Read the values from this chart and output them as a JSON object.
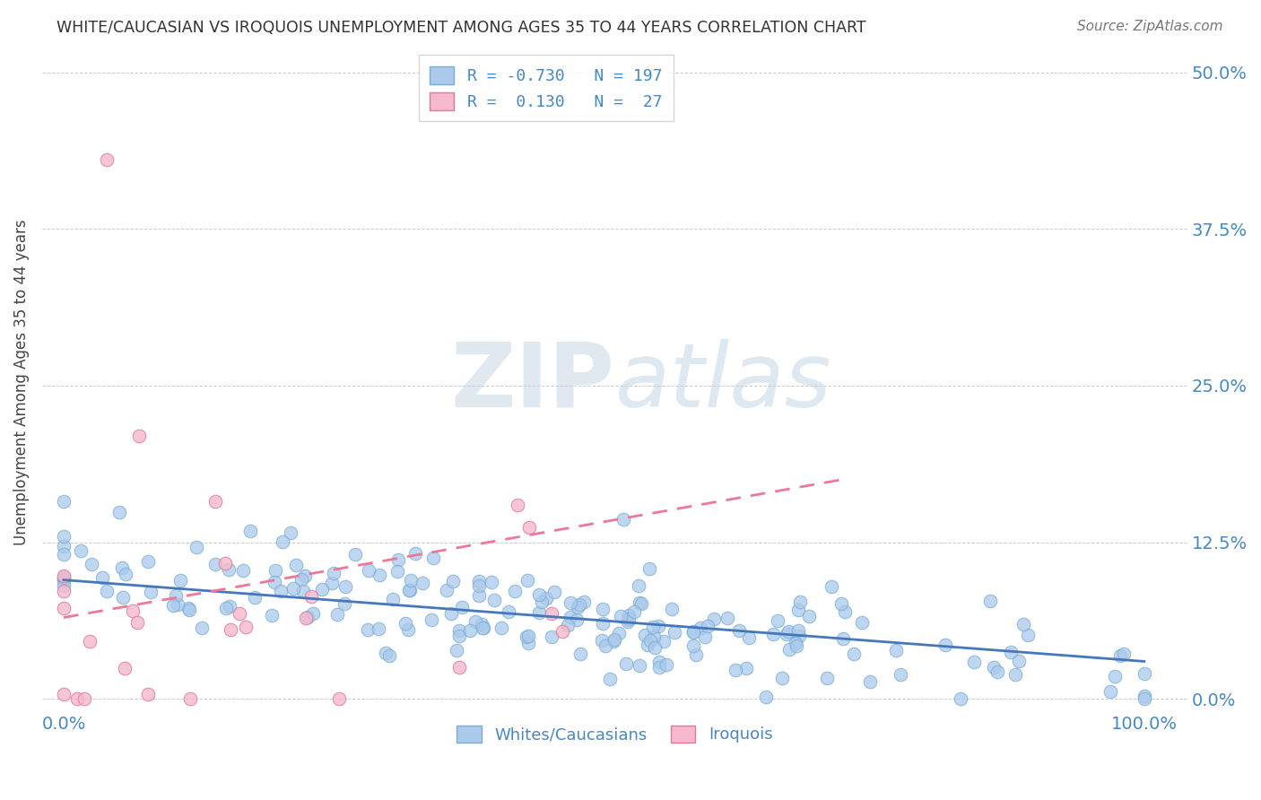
{
  "title": "WHITE/CAUCASIAN VS IROQUOIS UNEMPLOYMENT AMONG AGES 35 TO 44 YEARS CORRELATION CHART",
  "source": "Source: ZipAtlas.com",
  "ylabel": "Unemployment Among Ages 35 to 44 years",
  "ytick_labels": [
    "0.0%",
    "12.5%",
    "25.0%",
    "37.5%",
    "50.0%"
  ],
  "ytick_values": [
    0.0,
    0.125,
    0.25,
    0.375,
    0.5
  ],
  "xtick_values": [
    0.0,
    1.0
  ],
  "xtick_labels": [
    "0.0%",
    "100.0%"
  ],
  "group1_name": "Whites/Caucasians",
  "group2_name": "Iroquois",
  "group1_color": "#aac9eb",
  "group1_edge": "#7aadd4",
  "group2_color": "#f5b8cc",
  "group2_edge": "#e07898",
  "trend1_color": "#4477bb",
  "trend2_color": "#ee7799",
  "title_color": "#333333",
  "source_color": "#777777",
  "axis_label_color": "#444444",
  "tick_color": "#4488cc",
  "grid_color": "#cccccc",
  "background_color": "#ffffff",
  "watermark_zip": "ZIP",
  "watermark_atlas": "atlas",
  "watermark_color": "#e0e8f0",
  "R1": -0.73,
  "N1": 197,
  "R2": 0.13,
  "N2": 27,
  "ylim_min": -0.01,
  "ylim_max": 0.515,
  "xlim_min": -0.02,
  "xlim_max": 1.04
}
